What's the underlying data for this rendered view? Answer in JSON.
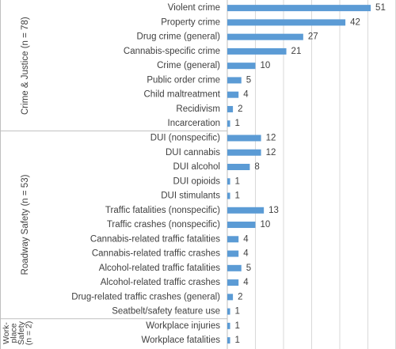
{
  "chart_data": {
    "type": "grouped-hbar",
    "color": "#5b9bd5",
    "xlim": [
      0,
      60
    ],
    "xticks": [
      0,
      10,
      20,
      30,
      40,
      50,
      60
    ],
    "grid": true,
    "groups": [
      {
        "label": [
          "Crime & Justice (n = 78)"
        ],
        "categories": [
          "Violent crime",
          "Property crime",
          "Drug crime (general)",
          "Cannabis-specific crime",
          "Crime (general)",
          "Public order crime",
          "Child maltreatment",
          "Recidivism",
          "Incarceration"
        ],
        "values": [
          51,
          42,
          27,
          21,
          10,
          5,
          4,
          2,
          1
        ]
      },
      {
        "label": [
          "Roadway Safety (n = 53)"
        ],
        "categories": [
          "DUI (nonspecific)",
          "DUI cannabis",
          "DUI alcohol",
          "DUI opioids",
          "DUI stimulants",
          "Traffic fatalities (nonspecific)",
          "Traffic crashes (nonspecific)",
          "Cannabis-related traffic fatalities",
          "Cannabis-related traffic crashes",
          "Alcohol-related traffic fatalities",
          "Alcohol-related traffic crashes",
          "Drug-related traffic crashes (general)",
          "Seatbelt/safety feature use"
        ],
        "values": [
          12,
          12,
          8,
          1,
          1,
          13,
          10,
          4,
          4,
          5,
          4,
          2,
          1
        ]
      },
      {
        "label": [
          "Work-",
          "place",
          "Safety",
          "(n = 2)"
        ],
        "categories": [
          "Workplace injuries",
          "Workplace fatalities"
        ],
        "values": [
          1,
          1
        ]
      }
    ]
  }
}
